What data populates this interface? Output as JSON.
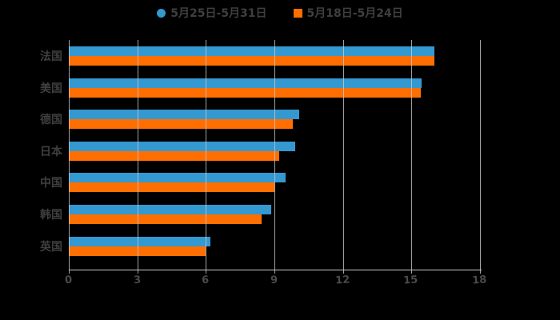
{
  "chart_data": {
    "type": "bar",
    "orientation": "horizontal",
    "title": "",
    "xlabel": "",
    "ylabel": "",
    "categories": [
      "法国",
      "美国",
      "德国",
      "日本",
      "中国",
      "韩国",
      "英国"
    ],
    "series": [
      {
        "name": "5月25日-5月31日",
        "color": "#3498d1",
        "legend_marker": "circle",
        "values": [
          16.0,
          15.45,
          10.1,
          9.9,
          9.5,
          8.85,
          6.2
        ]
      },
      {
        "name": "5月18日-5月24日",
        "color": "#ff6e00",
        "legend_marker": "square",
        "values": [
          16.0,
          15.4,
          9.8,
          9.2,
          9.0,
          8.45,
          6.0
        ]
      }
    ],
    "xticks": [
      0,
      3,
      6,
      9,
      12,
      15,
      18
    ],
    "xlim": [
      0,
      18.07
    ],
    "grid": true,
    "gridlines_over_bars": true,
    "legend_position": "top",
    "colors": {
      "background": "#000000",
      "grid": "#c9c9c9",
      "axis": "#c9c9c9",
      "label_text": "#3f3f3f",
      "tick_text": "#4a4a4a"
    }
  }
}
